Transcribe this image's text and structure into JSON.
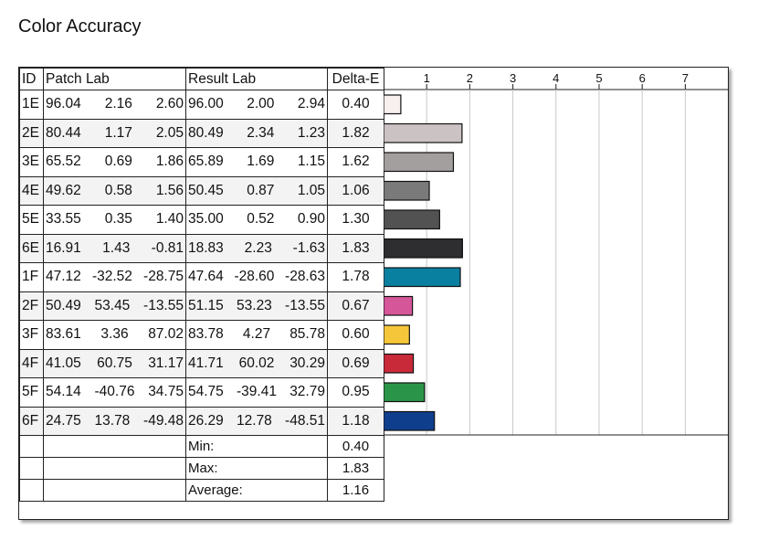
{
  "title": "Color Accuracy",
  "columns": {
    "id": "ID",
    "patch": "Patch Lab",
    "result": "Result Lab",
    "delta": "Delta-E"
  },
  "rows": [
    {
      "id": "1E",
      "patch": [
        "96.04",
        "2.16",
        "2.60"
      ],
      "result": [
        "96.00",
        "2.00",
        "2.94"
      ],
      "delta": "0.40",
      "color": "#f7f0ee"
    },
    {
      "id": "2E",
      "patch": [
        "80.44",
        "1.17",
        "2.05"
      ],
      "result": [
        "80.49",
        "2.34",
        "1.23"
      ],
      "delta": "1.82",
      "color": "#cbc2c3"
    },
    {
      "id": "3E",
      "patch": [
        "65.52",
        "0.69",
        "1.86"
      ],
      "result": [
        "65.89",
        "1.69",
        "1.15"
      ],
      "delta": "1.62",
      "color": "#a29f9e"
    },
    {
      "id": "4E",
      "patch": [
        "49.62",
        "0.58",
        "1.56"
      ],
      "result": [
        "50.45",
        "0.87",
        "1.05"
      ],
      "delta": "1.06",
      "color": "#7b7a7a"
    },
    {
      "id": "5E",
      "patch": [
        "33.55",
        "0.35",
        "1.40"
      ],
      "result": [
        "35.00",
        "0.52",
        "0.90"
      ],
      "delta": "1.30",
      "color": "#525252"
    },
    {
      "id": "6E",
      "patch": [
        "16.91",
        "1.43",
        "-0.81"
      ],
      "result": [
        "18.83",
        "2.23",
        "-1.63"
      ],
      "delta": "1.83",
      "color": "#2e2d2f"
    },
    {
      "id": "1F",
      "patch": [
        "47.12",
        "-32.52",
        "-28.75"
      ],
      "result": [
        "47.64",
        "-28.60",
        "-28.63"
      ],
      "delta": "1.78",
      "color": "#0a80a0"
    },
    {
      "id": "2F",
      "patch": [
        "50.49",
        "53.45",
        "-13.55"
      ],
      "result": [
        "51.15",
        "53.23",
        "-13.55"
      ],
      "delta": "0.67",
      "color": "#d6569a"
    },
    {
      "id": "3F",
      "patch": [
        "83.61",
        "3.36",
        "87.02"
      ],
      "result": [
        "83.78",
        "4.27",
        "85.78"
      ],
      "delta": "0.60",
      "color": "#f6c63a"
    },
    {
      "id": "4F",
      "patch": [
        "41.05",
        "60.75",
        "31.17"
      ],
      "result": [
        "41.71",
        "60.02",
        "30.29"
      ],
      "delta": "0.69",
      "color": "#c92a3a"
    },
    {
      "id": "5F",
      "patch": [
        "54.14",
        "-40.76",
        "34.75"
      ],
      "result": [
        "54.75",
        "-39.41",
        "32.79"
      ],
      "delta": "0.95",
      "color": "#2a9548"
    },
    {
      "id": "6F",
      "patch": [
        "24.75",
        "13.78",
        "-49.48"
      ],
      "result": [
        "26.29",
        "12.78",
        "-48.51"
      ],
      "delta": "1.18",
      "color": "#0f3f8c"
    }
  ],
  "summary": [
    {
      "label": "Min:",
      "value": "0.40"
    },
    {
      "label": "Max:",
      "value": "1.83"
    },
    {
      "label": "Average:",
      "value": "1.16"
    }
  ],
  "chart_data": {
    "type": "bar",
    "orientation": "horizontal",
    "categories": [
      "1E",
      "2E",
      "3E",
      "4E",
      "5E",
      "6E",
      "1F",
      "2F",
      "3F",
      "4F",
      "5F",
      "6F"
    ],
    "values": [
      0.4,
      1.82,
      1.62,
      1.06,
      1.3,
      1.83,
      1.78,
      0.67,
      0.6,
      0.69,
      0.95,
      1.18
    ],
    "xlim": [
      0,
      8
    ],
    "ticks": [
      "1",
      "2",
      "3",
      "4",
      "5",
      "6",
      "7"
    ],
    "grid": true
  }
}
